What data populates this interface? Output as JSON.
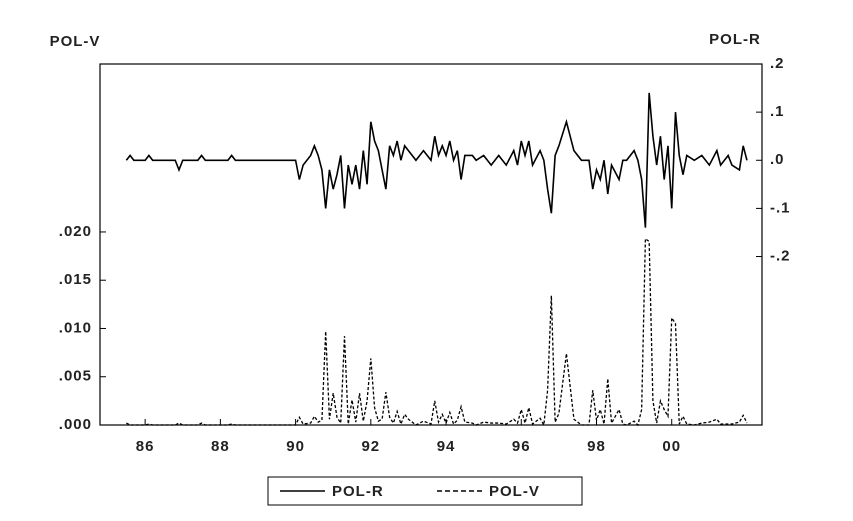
{
  "chart_data": {
    "type": "line",
    "y_label": "POL-V",
    "y2_label": "POL-R",
    "x": [
      1985.5,
      1985.6,
      1985.7,
      1986.0,
      1986.1,
      1986.2,
      1986.8,
      1986.9,
      1987.0,
      1987.4,
      1987.5,
      1987.6,
      1988.2,
      1988.3,
      1988.4,
      1990.0,
      1990.1,
      1990.2,
      1990.4,
      1990.5,
      1990.6,
      1990.7,
      1990.8,
      1990.9,
      1991.0,
      1991.1,
      1991.2,
      1991.3,
      1991.4,
      1991.5,
      1991.6,
      1991.7,
      1991.8,
      1991.9,
      1992.0,
      1992.1,
      1992.2,
      1992.3,
      1992.4,
      1992.5,
      1992.6,
      1992.7,
      1992.8,
      1992.9,
      1993.0,
      1993.2,
      1993.4,
      1993.6,
      1993.7,
      1993.8,
      1993.9,
      1994.0,
      1994.1,
      1994.2,
      1994.3,
      1994.4,
      1994.5,
      1994.7,
      1994.8,
      1995.0,
      1995.2,
      1995.4,
      1995.6,
      1995.8,
      1995.9,
      1996.0,
      1996.1,
      1996.2,
      1996.3,
      1996.5,
      1996.6,
      1996.7,
      1996.8,
      1996.9,
      1997.0,
      1997.2,
      1997.4,
      1997.6,
      1997.8,
      1997.9,
      1998.0,
      1998.1,
      1998.2,
      1998.3,
      1998.4,
      1998.6,
      1998.7,
      1998.8,
      1999.0,
      1999.1,
      1999.2,
      1999.3,
      1999.4,
      1999.5,
      1999.6,
      1999.7,
      1999.8,
      1999.9,
      2000.0,
      2000.1,
      2000.2,
      2000.3,
      2000.4,
      2000.6,
      2000.8,
      2001.0,
      2001.2,
      2001.3,
      2001.5,
      2001.6,
      2001.8,
      2001.9,
      2002.0
    ],
    "series": [
      {
        "name": "POL-R",
        "color": "#000000",
        "line_style": "solid",
        "axis": "y2",
        "values": [
          0,
          0.01,
          0,
          0,
          0.01,
          0,
          0,
          -0.02,
          0,
          0,
          0.01,
          0,
          0,
          0.01,
          0,
          0,
          -0.04,
          -0.01,
          0.01,
          0.03,
          0.01,
          -0.02,
          -0.1,
          -0.02,
          -0.06,
          -0.03,
          0.01,
          -0.1,
          -0.01,
          -0.05,
          -0.01,
          -0.06,
          0.02,
          -0.05,
          0.08,
          0.04,
          0.02,
          -0.02,
          -0.06,
          0.03,
          0.01,
          0.04,
          0,
          0.03,
          0.02,
          0,
          0.02,
          0,
          0.05,
          0.01,
          0.03,
          0.01,
          0.04,
          0,
          0.02,
          -0.04,
          0.01,
          0.01,
          0,
          0.01,
          -0.01,
          0.01,
          -0.01,
          0.02,
          -0.01,
          0.04,
          0.01,
          0.04,
          -0.01,
          0.02,
          0,
          -0.06,
          -0.11,
          0.01,
          0.03,
          0.08,
          0.02,
          0,
          0,
          -0.06,
          -0.02,
          -0.04,
          0,
          -0.07,
          -0.01,
          -0.04,
          0,
          0,
          0.02,
          0,
          -0.04,
          -0.14,
          0.14,
          0.05,
          -0.01,
          0.05,
          -0.04,
          0.03,
          -0.1,
          0.1,
          0.01,
          -0.03,
          0.01,
          0,
          0.01,
          -0.01,
          0.02,
          -0.01,
          0.01,
          -0.01,
          -0.02,
          0.03,
          0
        ]
      },
      {
        "name": "POL-V",
        "color": "#000000",
        "line_style": "dashed",
        "values": [
          0.0002,
          0,
          0,
          0,
          0.0001,
          0,
          0,
          0.0002,
          0,
          0,
          0.0002,
          0,
          0,
          0.0001,
          0,
          0,
          0.0008,
          0.0001,
          0.0002,
          0.0009,
          0.0003,
          0.0005,
          0.0097,
          0.0006,
          0.0033,
          0.0008,
          0.0002,
          0.0092,
          0.0001,
          0.0026,
          0.0003,
          0.0033,
          0.0004,
          0.0025,
          0.0069,
          0.0018,
          0.0004,
          0.0006,
          0.0034,
          0.0008,
          0.0002,
          0.0014,
          0.0001,
          0.0011,
          0.0006,
          0,
          0.0004,
          0.0001,
          0.0025,
          0.0003,
          0.0011,
          0.0002,
          0.0013,
          0.0001,
          0.0005,
          0.0019,
          0.0003,
          0.0002,
          0,
          0.0003,
          0.0002,
          0.0002,
          0.0001,
          0.0006,
          0.0002,
          0.0016,
          0.0002,
          0.0018,
          0.0001,
          0.0007,
          0,
          0.0036,
          0.0134,
          0.0003,
          0.0012,
          0.0074,
          0.0006,
          0,
          0,
          0.0036,
          0.0005,
          0.0016,
          0.0001,
          0.0048,
          0.0002,
          0.0016,
          0.0001,
          0,
          0.0004,
          0,
          0.0016,
          0.0193,
          0.019,
          0.0025,
          0.0002,
          0.0025,
          0.0016,
          0.0009,
          0.0111,
          0.0105,
          0.0001,
          0.0009,
          0.0001,
          0,
          0.0002,
          0.0003,
          0.0006,
          0.0001,
          0.0001,
          0.0001,
          0.0003,
          0.001,
          0.0002
        ]
      }
    ],
    "xlim": [
      1984.8,
      2002.4
    ],
    "xticks": [
      {
        "value": 1986,
        "label": "86"
      },
      {
        "value": 1988,
        "label": "88"
      },
      {
        "value": 1990,
        "label": "90"
      },
      {
        "value": 1992,
        "label": "92"
      },
      {
        "value": 1994,
        "label": "94"
      },
      {
        "value": 1996,
        "label": "96"
      },
      {
        "value": 1998,
        "label": "98"
      },
      {
        "value": 2000,
        "label": "00"
      }
    ],
    "ylim": [
      0,
      0.0374
    ],
    "yticks": [
      {
        "value": 0,
        "label": ".000"
      },
      {
        "value": 0.005,
        "label": ".005"
      },
      {
        "value": 0.01,
        "label": ".010"
      },
      {
        "value": 0.015,
        "label": ".015"
      },
      {
        "value": 0.02,
        "label": ".020"
      }
    ],
    "y2lim": [
      -0.55,
      0.2
    ],
    "y2ticks": [
      {
        "value": 0.2,
        "label": ".2"
      },
      {
        "value": 0.1,
        "label": ".1"
      },
      {
        "value": 0,
        "label": ".0"
      },
      {
        "value": -0.1,
        "label": "-.1"
      },
      {
        "value": -0.2,
        "label": "-.2"
      }
    ],
    "legend": "bottom"
  }
}
